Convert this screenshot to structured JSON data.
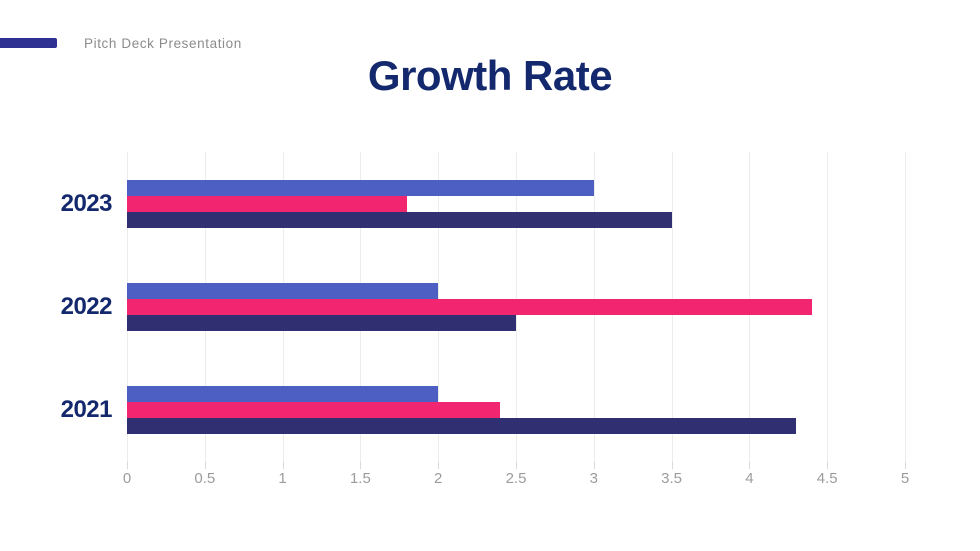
{
  "header": {
    "brand_text": "Pitch Deck Presentation"
  },
  "title": "Growth Rate",
  "colors": {
    "brand_accent_bar": "#2e3191",
    "title_text": "#14296d",
    "category_text": "#14296d",
    "brand_text": "#8c8c8c",
    "axis_text": "#9c9c9c",
    "gridline": "#ececec",
    "tick": "#d9d9d9",
    "series_blue": "#4e5fc3",
    "series_pink": "#f12570",
    "series_navy": "#302f72"
  },
  "chart_data": {
    "type": "bar",
    "orientation": "horizontal",
    "title": "Growth Rate",
    "categories": [
      "2023",
      "2022",
      "2021"
    ],
    "series": [
      {
        "name": "blue",
        "color": "#4e5fc3",
        "values": [
          3.0,
          2.0,
          2.0
        ]
      },
      {
        "name": "pink",
        "color": "#f12570",
        "values": [
          1.8,
          4.4,
          2.4
        ]
      },
      {
        "name": "navy",
        "color": "#302f72",
        "values": [
          3.5,
          2.5,
          4.3
        ]
      }
    ],
    "xlim": [
      0,
      5
    ],
    "xticks": [
      0,
      0.5,
      1,
      1.5,
      2,
      2.5,
      3,
      3.5,
      4,
      4.5,
      5
    ],
    "xtick_labels": [
      "0",
      "0.5",
      "1",
      "1.5",
      "2",
      "2.5",
      "3",
      "3.5",
      "4",
      "4.5",
      "5"
    ],
    "grid": "vertical-only",
    "legend": "none",
    "ylabel": "",
    "xlabel": ""
  }
}
